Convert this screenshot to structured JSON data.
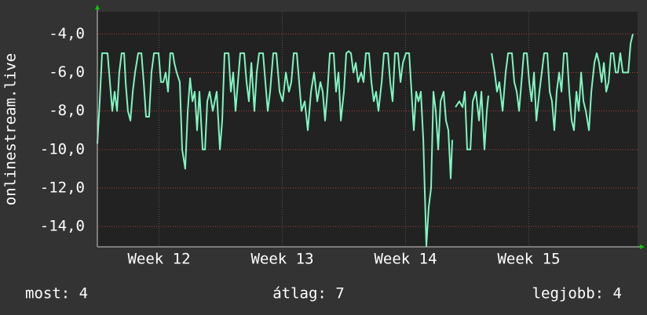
{
  "chart_data": {
    "type": "line",
    "ylabel": "onlinestream.live",
    "color": "#7ff5c0",
    "grid": true,
    "xlim": [
      11.5,
      15.882
    ],
    "xticks": [
      {
        "value": 12,
        "label": "Week 12"
      },
      {
        "value": 13,
        "label": "Week 13"
      },
      {
        "value": 14,
        "label": "Week 14"
      },
      {
        "value": 15,
        "label": "Week 15"
      }
    ],
    "ylim": [
      -15.05,
      -2.85
    ],
    "yticks": [
      {
        "value": -4,
        "label": "-4,0"
      },
      {
        "value": -6,
        "label": "-6,0"
      },
      {
        "value": -8,
        "label": "-8,0"
      },
      {
        "value": -10,
        "label": "-10,0"
      },
      {
        "value": -12,
        "label": "-12,0"
      },
      {
        "value": -14,
        "label": "-14,0"
      }
    ],
    "x": [
      11.5,
      11.519,
      11.538,
      11.583,
      11.602,
      11.621,
      11.64,
      11.659,
      11.678,
      11.697,
      11.717,
      11.729,
      11.748,
      11.768,
      11.787,
      11.806,
      11.831,
      11.857,
      11.876,
      11.895,
      11.92,
      11.939,
      11.959,
      11.997,
      12.016,
      12.035,
      12.054,
      12.073,
      12.092,
      12.112,
      12.124,
      12.143,
      12.169,
      12.188,
      12.213,
      12.233,
      12.252,
      12.271,
      12.29,
      12.309,
      12.328,
      12.354,
      12.373,
      12.392,
      12.411,
      12.436,
      12.468,
      12.494,
      12.513,
      12.532,
      12.564,
      12.583,
      12.602,
      12.621,
      12.64,
      12.659,
      12.691,
      12.71,
      12.729,
      12.749,
      12.774,
      12.793,
      12.812,
      12.844,
      12.863,
      12.882,
      12.901,
      12.927,
      12.952,
      12.978,
      13.003,
      13.029,
      13.054,
      13.073,
      13.093,
      13.118,
      13.137,
      13.156,
      13.182,
      13.207,
      13.233,
      13.258,
      13.284,
      13.309,
      13.328,
      13.347,
      13.366,
      13.386,
      13.417,
      13.436,
      13.456,
      13.475,
      13.5,
      13.519,
      13.538,
      13.557,
      13.577,
      13.596,
      13.615,
      13.64,
      13.659,
      13.678,
      13.704,
      13.723,
      13.742,
      13.761,
      13.78,
      13.806,
      13.825,
      13.857,
      13.876,
      13.895,
      13.914,
      13.939,
      13.959,
      13.978,
      14.003,
      14.029,
      14.048,
      14.067,
      14.086,
      14.105,
      14.124,
      14.144,
      14.169,
      14.188,
      14.207,
      14.226,
      14.245,
      14.265,
      14.284,
      14.309,
      14.328,
      14.347,
      14.366,
      14.379,
      14.392,
      14.405,
      14.436,
      14.462,
      14.481,
      14.5,
      14.526,
      14.545,
      14.57,
      14.596,
      14.615,
      14.64,
      14.659,
      14.672,
      14.685,
      14.698,
      14.723,
      14.742,
      14.761,
      14.787,
      14.812,
      14.832,
      14.863,
      14.882,
      14.902,
      14.921,
      14.94,
      14.959,
      14.984,
      15.003,
      15.022,
      15.042,
      15.061,
      15.086,
      15.105,
      15.124,
      15.15,
      15.169,
      15.188,
      15.207,
      15.226,
      15.246,
      15.265,
      15.284,
      15.309,
      15.328,
      15.347,
      15.366,
      15.386,
      15.405,
      15.424,
      15.443,
      15.462,
      15.488,
      15.507,
      15.532,
      15.551,
      15.57,
      15.59,
      15.609,
      15.628,
      15.647,
      15.666,
      15.685,
      15.704,
      15.723,
      15.742,
      15.762,
      15.787,
      15.806,
      15.825,
      15.844
    ],
    "values": [
      -9.7,
      -7.5,
      -5,
      -5,
      -6.5,
      -8,
      -7,
      -8,
      -6,
      -5,
      -5,
      -6.5,
      -8,
      -8.5,
      -7,
      -6,
      -5,
      -5,
      -6.5,
      -8.3,
      -8.3,
      -6,
      -5,
      -5,
      -6.5,
      -6.5,
      -6,
      -7,
      -5,
      -5,
      -5.5,
      -6,
      -6.5,
      -10,
      -11,
      -8,
      -6.3,
      -7.5,
      -7,
      -9,
      -7,
      -10,
      -10,
      -7.5,
      -7,
      -8,
      -7,
      -10,
      -8.5,
      -5,
      -5,
      -7,
      -6,
      -8,
      -6.5,
      -5,
      -5,
      -6.5,
      -7.5,
      -5.5,
      -8,
      -6,
      -5,
      -5,
      -6.5,
      -8,
      -7,
      -5,
      -5,
      -7,
      -7.5,
      -6,
      -7,
      -6.5,
      -5,
      -5,
      -6.5,
      -8,
      -7.5,
      -9,
      -7,
      -6,
      -7.5,
      -6.5,
      -7,
      -8.5,
      -7,
      -5,
      -5,
      -7,
      -6,
      -8.5,
      -7,
      -5,
      -4.9,
      -5,
      -6,
      -5.5,
      -6.5,
      -6,
      -6.5,
      -5,
      -5,
      -6.5,
      -7.5,
      -7,
      -8,
      -6.5,
      -5,
      -5,
      -6.5,
      -7.5,
      -5,
      -5,
      -6.5,
      -5.5,
      -5,
      -5,
      -7,
      -9,
      -7,
      -7.5,
      -7,
      -9.5,
      -15,
      -13,
      -12,
      -7,
      -8,
      -10,
      -7.5,
      -7,
      -8.5,
      -9,
      -11.5,
      -9.5,
      null,
      -7.8,
      -7.5,
      -7.8,
      -7,
      -10,
      -10,
      -7.5,
      -7,
      -8.5,
      -7,
      -10,
      -8,
      -7.2,
      null,
      -5,
      -6,
      -7,
      -6.5,
      -8,
      -6,
      -5,
      -5,
      -6.5,
      -7,
      -8,
      -6.5,
      -5,
      -5,
      -6.5,
      -7.5,
      -6,
      -8.5,
      -7,
      -6,
      -5,
      -5,
      -7,
      -7.5,
      -9,
      -7,
      -6,
      -7,
      -5,
      -5,
      -7,
      -8.5,
      -9,
      -7,
      -8,
      -6,
      -7.5,
      -8,
      -9,
      -7,
      -5.5,
      -5,
      -5.5,
      -6.5,
      -5.5,
      -7,
      -6.5,
      -5,
      -5,
      -6,
      -6,
      -5,
      -6,
      -6,
      -6,
      -4.5,
      -4
    ],
    "footer": [
      "most: 4",
      "átlag: 7",
      "legjobb: 4"
    ]
  }
}
